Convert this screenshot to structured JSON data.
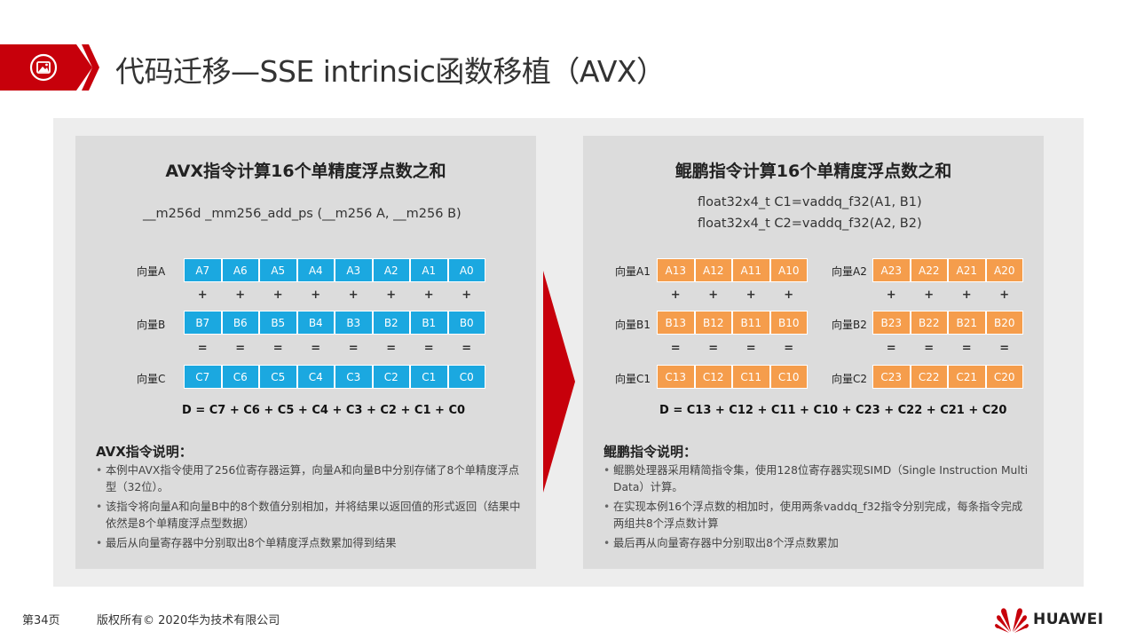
{
  "title": "代码迁移—SSE intrinsic函数移植（AVX）",
  "colors": {
    "accent": "#c7000b",
    "avx_reg": "#1ba8e0",
    "kunpeng_reg": "#f59d4c",
    "panel": "#dcdcdc",
    "outer": "#ededed"
  },
  "left": {
    "title": "AVX指令计算16个单精度浮点数之和",
    "code": "__m256d _mm256_add_ps (__m256 A, __m256 B)",
    "vectors": [
      {
        "label": "向量A",
        "cells": [
          "A7",
          "A6",
          "A5",
          "A4",
          "A3",
          "A2",
          "A1",
          "A0"
        ]
      },
      {
        "label": "向量B",
        "cells": [
          "B7",
          "B6",
          "B5",
          "B4",
          "B3",
          "B2",
          "B1",
          "B0"
        ]
      },
      {
        "label": "向量C",
        "cells": [
          "C7",
          "C6",
          "C5",
          "C4",
          "C3",
          "C2",
          "C1",
          "C0"
        ]
      }
    ],
    "plus": "+",
    "eq": "=",
    "formula": "D = C7 + C6 + C5 + C4 + C3 + C2 + C1 + C0",
    "notes_title": "AVX指令说明：",
    "notes": [
      "本例中AVX指令使用了256位寄存器运算，向量A和向量B中分别存储了8个单精度浮点型（32位）。",
      "该指令将向量A和向量B中的8个数值分别相加，并将结果以返回值的形式返回（结果中依然是8个单精度浮点型数据）",
      "最后从向量寄存器中分别取出8个单精度浮点数累加得到结果"
    ]
  },
  "right": {
    "title": "鲲鹏指令计算16个单精度浮点数之和",
    "code1": "float32x4_t  C1=vaddq_f32(A1, B1)",
    "code2": "float32x4_t  C2=vaddq_f32(A2, B2)",
    "group1": [
      {
        "label": "向量A1",
        "cells": [
          "A13",
          "A12",
          "A11",
          "A10"
        ]
      },
      {
        "label": "向量B1",
        "cells": [
          "B13",
          "B12",
          "B11",
          "B10"
        ]
      },
      {
        "label": "向量C1",
        "cells": [
          "C13",
          "C12",
          "C11",
          "C10"
        ]
      }
    ],
    "group2": [
      {
        "label": "向量A2",
        "cells": [
          "A23",
          "A22",
          "A21",
          "A20"
        ]
      },
      {
        "label": "向量B2",
        "cells": [
          "B23",
          "B22",
          "B21",
          "B20"
        ]
      },
      {
        "label": "向量C2",
        "cells": [
          "C23",
          "C22",
          "C21",
          "C20"
        ]
      }
    ],
    "formula": "D = C13 + C12 + C11 + C10 + C23 + C22 + C21 + C20",
    "notes_title": "鲲鹏指令说明：",
    "notes": [
      "鲲鹏处理器采用精简指令集，使用128位寄存器实现SIMD（Single Instruction Multi Data）计算。",
      "在实现本例16个浮点数的相加时，使用两条vaddq_f32指令分别完成，每条指令完成两组共8个浮点数计算",
      "最后再从向量寄存器中分别取出8个浮点数累加"
    ]
  },
  "footer": {
    "page": "第34页",
    "copyright": "版权所有© 2020华为技术有限公司",
    "brand": "HUAWEI"
  }
}
